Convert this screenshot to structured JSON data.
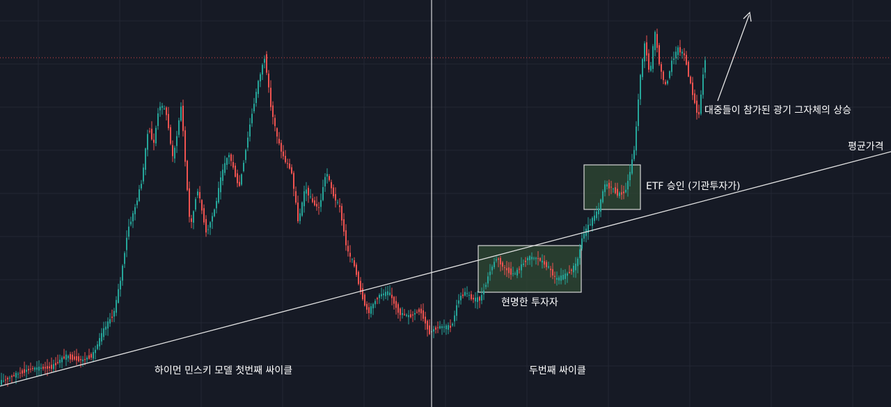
{
  "chart_data": {
    "type": "candlestick",
    "title": "",
    "grid": true,
    "colors": {
      "background": "#161a25",
      "up": "#26a69a",
      "down": "#ef5350",
      "grid": "#232734",
      "trendline": "#e6e6e6",
      "divider": "#ffffff",
      "price_line": "#e04848",
      "box_fill": "#2f4a33",
      "box_border": "#d8d8d8"
    },
    "annotations": {
      "cycle1": "하이먼 민스키 모델 첫번째  싸이클",
      "cycle2": "두번째 싸이클",
      "smart": "현명한 투자자",
      "etf": "ETF 승인 (기관투자가)",
      "mania": "대중들이 참가된 광기 그자체의 상승",
      "avg": "평균가격"
    }
  }
}
